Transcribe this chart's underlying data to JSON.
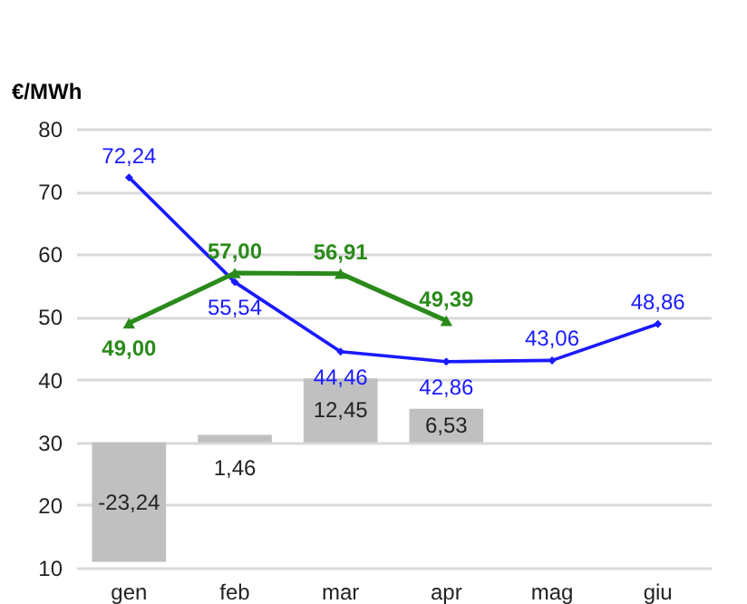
{
  "chart_data": {
    "type": "line",
    "ylabel": "€/MWh",
    "categories": [
      "gen",
      "feb",
      "mar",
      "apr",
      "mag",
      "giu"
    ],
    "ylim": [
      10,
      80
    ],
    "yticks": [
      10,
      20,
      30,
      40,
      50,
      60,
      70,
      80
    ],
    "y2lim": [
      -24.4,
      61
    ],
    "grid": "y",
    "series": [
      {
        "type": "bar",
        "axis": "y2",
        "color": "#c0c0c0",
        "values": [
          -23.24,
          1.46,
          12.45,
          6.53,
          null,
          null
        ],
        "value_labels": [
          "-23,24",
          "1,46",
          "12,45",
          "6,53",
          null,
          null
        ]
      },
      {
        "color": "#1a1aff",
        "marker": "diamond",
        "values": [
          72.24,
          55.54,
          44.46,
          42.86,
          43.06,
          48.86
        ],
        "value_labels": [
          "72,24",
          "55,54",
          "44,46",
          "42,86",
          "43,06",
          "48,86"
        ]
      },
      {
        "color": "#2a8a1a",
        "marker": "triangle",
        "values": [
          49.0,
          57.0,
          56.91,
          49.39,
          null,
          null
        ],
        "value_labels": [
          "49,00",
          "57,00",
          "56,91",
          "49,39",
          null,
          null
        ]
      }
    ]
  }
}
